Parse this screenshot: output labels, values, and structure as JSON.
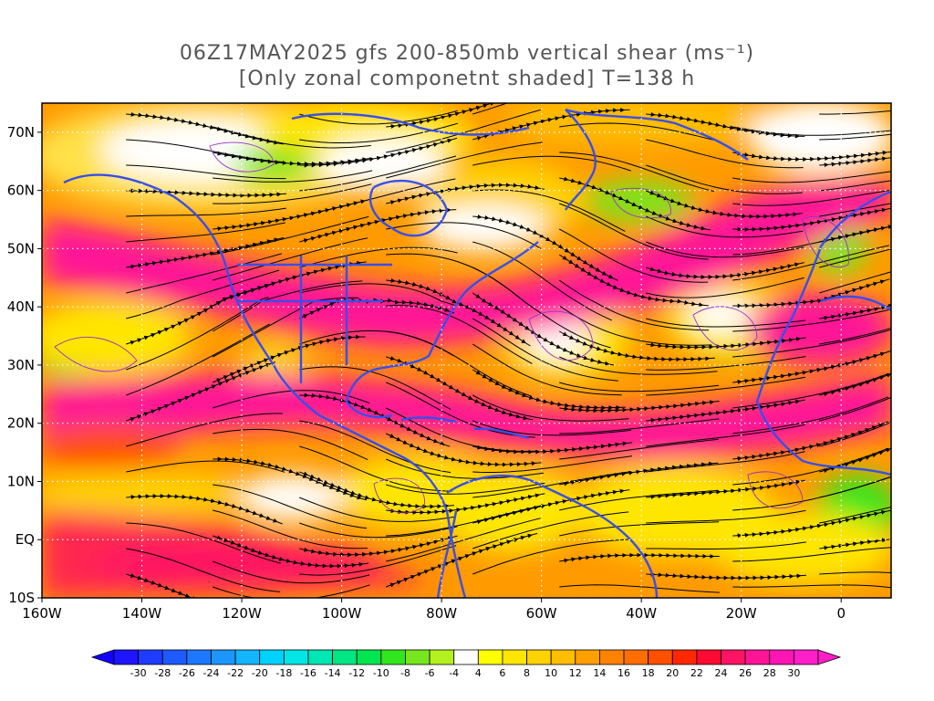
{
  "title": {
    "line1": "06Z17MAY2025 gfs 200-850mb vertical shear (ms⁻¹)",
    "line2": "[Only zonal componetnt shaded] T=138 h"
  },
  "map": {
    "lon_min": -160,
    "lon_max": 10,
    "lat_min": -10,
    "lat_max": 75,
    "x_tick_labels": [
      "160W",
      "140W",
      "120W",
      "100W",
      "80W",
      "60W",
      "40W",
      "20W",
      "0"
    ],
    "x_tick_values": [
      -160,
      -140,
      -120,
      -100,
      -80,
      -60,
      -40,
      -20,
      0
    ],
    "y_tick_labels": [
      "10S",
      "EQ",
      "10N",
      "20N",
      "30N",
      "40N",
      "50N",
      "60N",
      "70N"
    ],
    "y_tick_values": [
      -10,
      0,
      10,
      20,
      30,
      40,
      50,
      60,
      70
    ],
    "grid_lines": "dotted white",
    "coastline_color": "#3a4ee8",
    "contour_color": "#9a2fc8",
    "streamline_color": "#000000"
  },
  "colorbar": {
    "labels": [
      "-30",
      "-28",
      "-26",
      "-24",
      "-22",
      "-20",
      "-18",
      "-16",
      "-14",
      "-12",
      "-10",
      "-8",
      "-6",
      "-4",
      "4",
      "6",
      "8",
      "10",
      "12",
      "14",
      "16",
      "18",
      "20",
      "22",
      "24",
      "26",
      "28",
      "30"
    ],
    "colors": [
      "#1e14ff",
      "#1e3cff",
      "#1e5aff",
      "#1e78ff",
      "#1e96ff",
      "#14b4ff",
      "#00d2ff",
      "#00e6e6",
      "#00e6b4",
      "#00e682",
      "#00e650",
      "#32e61e",
      "#78e61e",
      "#b4f01e",
      "#ffffff",
      "#ffff00",
      "#ffe600",
      "#ffd200",
      "#ffbe00",
      "#ffa000",
      "#ff8200",
      "#ff6e00",
      "#ff5000",
      "#ff2800",
      "#ff0a32",
      "#ff1464",
      "#ff1496",
      "#ff14b4",
      "#ff1ec8"
    ],
    "min_color": "#1400ff",
    "max_color": "#ff1ec8"
  }
}
